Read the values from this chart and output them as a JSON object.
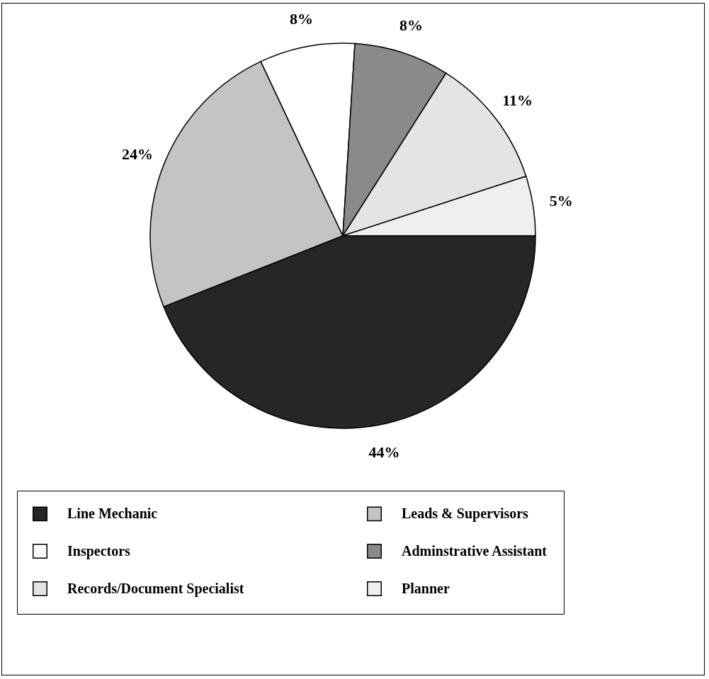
{
  "chart_data": {
    "type": "pie",
    "categories": [
      "Line Mechanic",
      "Leads & Supervisors",
      "Inspectors",
      "Adminstrative Assistant",
      "Records/Document Specialist",
      "Planner"
    ],
    "values": [
      44,
      24,
      8,
      8,
      11,
      5
    ],
    "colors": [
      "#262626",
      "#c4c4c4",
      "#ffffff",
      "#8a8a8a",
      "#e4e4e4",
      "#efefef"
    ],
    "value_labels": [
      "44%",
      "24%",
      "8%",
      "8%",
      "11%",
      "5%"
    ],
    "legend": "bottom"
  }
}
